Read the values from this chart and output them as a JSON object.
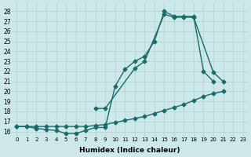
{
  "xlabel": "Humidex (Indice chaleur)",
  "xlim": [
    -0.5,
    23.5
  ],
  "ylim": [
    15.5,
    28.8
  ],
  "xticks": [
    0,
    1,
    2,
    3,
    4,
    5,
    6,
    7,
    8,
    9,
    10,
    11,
    12,
    13,
    14,
    15,
    16,
    17,
    18,
    19,
    20,
    21,
    22,
    23
  ],
  "yticks": [
    16,
    17,
    18,
    19,
    20,
    21,
    22,
    23,
    24,
    25,
    26,
    27,
    28
  ],
  "bg_color": "#cce8e8",
  "grid_color": "#b0d0d0",
  "line_color": "#1a6b6b",
  "line1_x": [
    0,
    1,
    2,
    3,
    4,
    5,
    6,
    7,
    8,
    9,
    10,
    11,
    12,
    13,
    14,
    15,
    16,
    17,
    18,
    19,
    20
  ],
  "line1_y": [
    16.5,
    16.5,
    16.3,
    16.2,
    16.1,
    15.8,
    15.8,
    16.1,
    16.4,
    16.4,
    20.5,
    22.2,
    23.0,
    23.5,
    25.0,
    28.0,
    27.5,
    27.5,
    27.5,
    22.0,
    21.0
  ],
  "line2_x": [
    8,
    9,
    12,
    13,
    15,
    16,
    17,
    18,
    20,
    21
  ],
  "line2_y": [
    18.3,
    18.3,
    22.3,
    23.0,
    27.7,
    27.4,
    27.4,
    27.4,
    21.9,
    21.0
  ],
  "line3_x": [
    0,
    1,
    2,
    3,
    4,
    5,
    6,
    7,
    8,
    9,
    10,
    11,
    12,
    13,
    14,
    15,
    16,
    17,
    18,
    19,
    20,
    21
  ],
  "line3_y": [
    16.5,
    16.5,
    16.5,
    16.5,
    16.5,
    16.5,
    16.5,
    16.5,
    16.6,
    16.7,
    16.9,
    17.1,
    17.3,
    17.5,
    17.8,
    18.1,
    18.4,
    18.7,
    19.1,
    19.5,
    19.8,
    20.0
  ],
  "markersize": 2.5,
  "linewidth": 1.0
}
